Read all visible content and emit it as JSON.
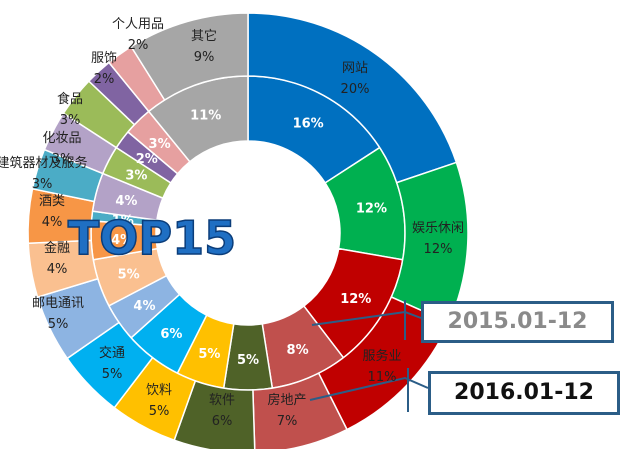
{
  "chart_data": {
    "type": "pie",
    "title": "TOP15",
    "series": [
      {
        "name": "2015.01-12",
        "ring": "inner",
        "slices": [
          {
            "label": "网站",
            "value": 16,
            "color": "#0070C0"
          },
          {
            "label": "娱乐休闲",
            "value": 12,
            "color": "#00B050"
          },
          {
            "label": "服务业",
            "value": 12,
            "color": "#C00000"
          },
          {
            "label": "房地产",
            "value": 8,
            "color": "#C0504D"
          },
          {
            "label": "软件",
            "value": 5,
            "color": "#4F6228"
          },
          {
            "label": "饮料",
            "value": 5,
            "color": "#FFC000"
          },
          {
            "label": "交通",
            "value": 6,
            "color": "#00B0F0"
          },
          {
            "label": "邮电通讯",
            "value": 4,
            "color": "#8DB4E2"
          },
          {
            "label": "金融",
            "value": 5,
            "color": "#FAC090"
          },
          {
            "label": "酒类",
            "value": 4,
            "color": "#F79646"
          },
          {
            "label": "建筑器材及服务",
            "value": 1,
            "color": "#4BACC6"
          },
          {
            "label": "化妆品",
            "value": 4,
            "color": "#B3A2C7"
          },
          {
            "label": "食品",
            "value": 3,
            "color": "#9BBB59"
          },
          {
            "label": "服饰",
            "value": 2,
            "color": "#8064A2"
          },
          {
            "label": "个人用品",
            "value": 3,
            "color": "#E6A0A0"
          },
          {
            "label": "其它",
            "value": 11,
            "color": "#A6A6A6"
          }
        ]
      },
      {
        "name": "2016.01-12",
        "ring": "outer",
        "slices": [
          {
            "label": "网站",
            "value": 20,
            "color": "#0070C0"
          },
          {
            "label": "娱乐休闲",
            "value": 12,
            "color": "#00B050"
          },
          {
            "label": "服务业",
            "value": 11,
            "color": "#C00000"
          },
          {
            "label": "房地产",
            "value": 7,
            "color": "#C0504D"
          },
          {
            "label": "软件",
            "value": 6,
            "color": "#4F6228"
          },
          {
            "label": "饮料",
            "value": 5,
            "color": "#FFC000"
          },
          {
            "label": "交通",
            "value": 5,
            "color": "#00B0F0"
          },
          {
            "label": "邮电通讯",
            "value": 5,
            "color": "#8DB4E2"
          },
          {
            "label": "金融",
            "value": 4,
            "color": "#FAC090"
          },
          {
            "label": "酒类",
            "value": 4,
            "color": "#F79646"
          },
          {
            "label": "建筑器材及服务",
            "value": 3,
            "color": "#4BACC6"
          },
          {
            "label": "化妆品",
            "value": 3,
            "color": "#B3A2C7"
          },
          {
            "label": "食品",
            "value": 3,
            "color": "#9BBB59"
          },
          {
            "label": "服饰",
            "value": 2,
            "color": "#8064A2"
          },
          {
            "label": "个人用品",
            "value": 2,
            "color": "#E6A0A0"
          },
          {
            "label": "其它",
            "value": 9,
            "color": "#A6A6A6"
          }
        ]
      }
    ],
    "legend": "callout-boxes-right"
  }
}
